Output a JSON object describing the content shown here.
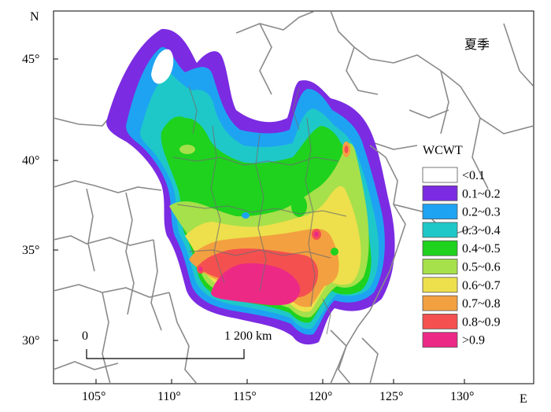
{
  "map": {
    "season_label": "夏季",
    "north_label": "N",
    "east_label": "E",
    "lat_ticks": [
      "45°",
      "40°",
      "35°",
      "30°"
    ],
    "lon_ticks": [
      "105°",
      "110°",
      "115°",
      "120°",
      "125°",
      "130°"
    ],
    "scale_bar": {
      "start_label": "0",
      "end_label": "1 200 km"
    }
  },
  "legend": {
    "title": "WCWT",
    "items": [
      {
        "label": "<0.1",
        "color": "#ffffff"
      },
      {
        "label": "0.1~0.2",
        "color": "#7b2be2"
      },
      {
        "label": "0.2~0.3",
        "color": "#1ea3f2"
      },
      {
        "label": "0.3~0.4",
        "color": "#1ec8c8"
      },
      {
        "label": "0.4~0.5",
        "color": "#1ed21e"
      },
      {
        "label": "0.5~0.6",
        "color": "#a6e04a"
      },
      {
        "label": "0.6~0.7",
        "color": "#ede04c"
      },
      {
        "label": "0.7~0.8",
        "color": "#f3a040"
      },
      {
        "label": "0.8~0.9",
        "color": "#f45050"
      },
      {
        "label": ">0.9",
        "color": "#ec2a86"
      }
    ]
  }
}
